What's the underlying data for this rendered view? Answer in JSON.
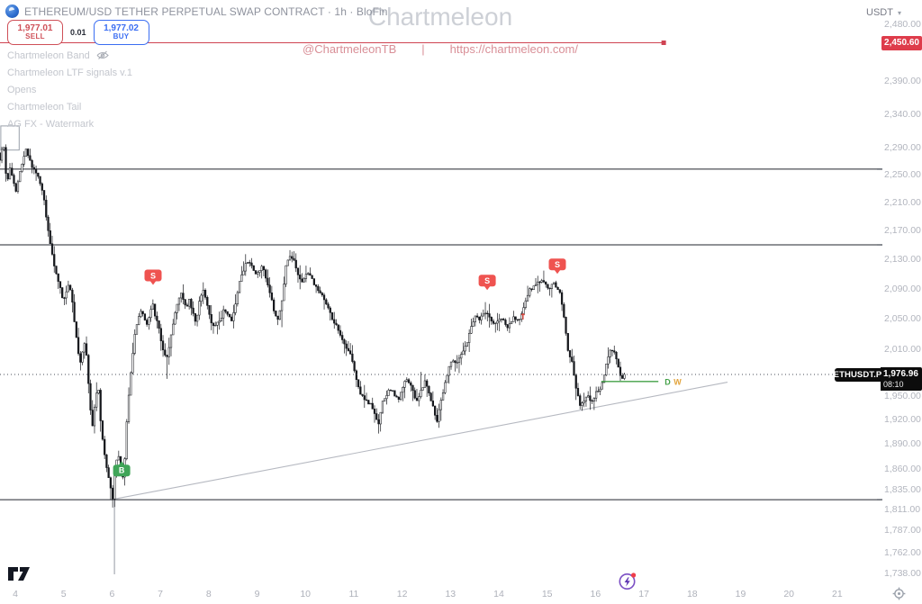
{
  "header": {
    "symbol_title": "ETHEREUM/USD TETHER PERPETUAL SWAP CONTRACT · 1h · BloFin"
  },
  "order_panel": {
    "sell_price": "1,977.01",
    "sell_label": "SELL",
    "spread": "0.01",
    "buy_price": "1,977.02",
    "buy_label": "BUY"
  },
  "indicators": [
    {
      "label": "Chartmeleon Band",
      "hidden": true
    },
    {
      "label": "Chartmeleon LTF signals v.1",
      "hidden": false
    },
    {
      "label": "Opens",
      "hidden": false
    },
    {
      "label": "Chartmeleon Tail",
      "hidden": false
    },
    {
      "label": "AG FX - Watermark",
      "hidden": false
    }
  ],
  "watermark": {
    "title": "Chartmeleon",
    "handle": "@ChartmeleonTB",
    "separator": "|",
    "url": "https://chartmeleon.com/"
  },
  "price_scale": {
    "unit": "USDT",
    "labels": [
      "2,480.00",
      "2,390.00",
      "2,340.00",
      "2,290.00",
      "2,250.00",
      "2,210.00",
      "2,170.00",
      "2,130.00",
      "2,090.00",
      "2,050.00",
      "2,010.00",
      "1,950.00",
      "1,920.00",
      "1,890.00",
      "1,860.00",
      "1,835.00",
      "1,811.00",
      "1,787.00",
      "1,762.00",
      "1,738.00"
    ],
    "alert_tag": {
      "text": "2,450.60"
    },
    "last_price_tag": {
      "symbol": "ETHUSDT.P",
      "price": "1,976.96",
      "countdown": "08:10"
    }
  },
  "time_scale": {
    "labels": [
      "4",
      "5",
      "6",
      "7",
      "8",
      "9",
      "10",
      "11",
      "12",
      "13",
      "14",
      "15",
      "16",
      "17",
      "18",
      "19",
      "20",
      "21"
    ]
  },
  "colors": {
    "sell_red": "#cf5058",
    "buy_blue": "#3b6ef2",
    "alert_red": "#cf4352",
    "tag_red": "#de3c4b",
    "tag_black": "#0c0c0c",
    "candle": "#16181d",
    "level_line": "#21252e",
    "trendline_gray": "#b6b9c1",
    "signal_red": "#ef5350",
    "signal_green": "#3fa558",
    "open_line_green": "#43a047",
    "open_w_orange": "#e2a33b",
    "watermark_pink": "#d98f97",
    "event_purple": "#7b4fc4"
  },
  "chart_data": {
    "type": "candlestick",
    "symbol": "ETHUSDT.P",
    "exchange": "BloFin",
    "timeframe": "1h",
    "title_watermark": "Chartmeleon",
    "y_axis": {
      "scale": "log",
      "min": 1738,
      "max": 2480,
      "tick_step_top": 50,
      "grid": false
    },
    "x_axis": {
      "unit": "day-of-month",
      "ticks": [
        4,
        5,
        6,
        7,
        8,
        9,
        10,
        11,
        12,
        13,
        14,
        15,
        16,
        17,
        18,
        19,
        20,
        21
      ]
    },
    "last_price": 1976.96,
    "countdown": "08:10",
    "alert_line": {
      "price": 2450.6,
      "from_day": 3.68,
      "to_day": 17.41
    },
    "horizontal_lines": [
      2258,
      2150,
      1823
    ],
    "trendline": {
      "from": [
        6.08,
        1824
      ],
      "to": [
        18.73,
        1967
      ]
    },
    "open_line": {
      "price": 1968,
      "from_day": 16.12,
      "to_day": 17.3,
      "labels": [
        {
          "text": "D",
          "color": "#43a047"
        },
        {
          "text": "W",
          "color": "#e2a33b"
        }
      ]
    },
    "signals": [
      {
        "type": "sell",
        "label": "S",
        "day": 6.85,
        "price": 2095
      },
      {
        "type": "sell",
        "label": "S",
        "day": 13.76,
        "price": 2088
      },
      {
        "type": "sell",
        "label": "S",
        "day": 15.21,
        "price": 2110
      },
      {
        "type": "buy",
        "label": "B",
        "day": 6.2,
        "price": 1869
      }
    ],
    "minor_mark": {
      "day": 14.5,
      "price": 2052
    },
    "event_line": {
      "day": 6.05,
      "from_price": 1823
    },
    "range_box": {
      "day_from": 3.7,
      "day_to": 4.08,
      "price_low": 2286,
      "price_high": 2322
    },
    "price_path": [
      [
        3.68,
        2282
      ],
      [
        3.74,
        2268
      ],
      [
        3.79,
        2310
      ],
      [
        3.83,
        2255
      ],
      [
        3.88,
        2242
      ],
      [
        3.94,
        2262
      ],
      [
        4.0,
        2240
      ],
      [
        4.06,
        2226
      ],
      [
        4.12,
        2248
      ],
      [
        4.19,
        2270
      ],
      [
        4.26,
        2288
      ],
      [
        4.32,
        2276
      ],
      [
        4.38,
        2262
      ],
      [
        4.45,
        2255
      ],
      [
        4.52,
        2248
      ],
      [
        4.58,
        2232
      ],
      [
        4.64,
        2212
      ],
      [
        4.7,
        2178
      ],
      [
        4.78,
        2145
      ],
      [
        4.85,
        2120
      ],
      [
        4.92,
        2102
      ],
      [
        4.98,
        2088
      ],
      [
        5.04,
        2072
      ],
      [
        5.1,
        2088
      ],
      [
        5.16,
        2098
      ],
      [
        5.22,
        2072
      ],
      [
        5.28,
        2038
      ],
      [
        5.34,
        2005
      ],
      [
        5.4,
        1988
      ],
      [
        5.46,
        2022
      ],
      [
        5.52,
        1998
      ],
      [
        5.58,
        1942
      ],
      [
        5.64,
        1912
      ],
      [
        5.7,
        1948
      ],
      [
        5.76,
        1958
      ],
      [
        5.82,
        1905
      ],
      [
        5.88,
        1882
      ],
      [
        5.94,
        1858
      ],
      [
        6.0,
        1840
      ],
      [
        6.05,
        1822
      ],
      [
        6.1,
        1855
      ],
      [
        6.16,
        1880
      ],
      [
        6.22,
        1858
      ],
      [
        6.28,
        1845
      ],
      [
        6.34,
        1910
      ],
      [
        6.4,
        1962
      ],
      [
        6.46,
        1998
      ],
      [
        6.52,
        2032
      ],
      [
        6.58,
        2048
      ],
      [
        6.64,
        2060
      ],
      [
        6.7,
        2052
      ],
      [
        6.76,
        2042
      ],
      [
        6.82,
        2055
      ],
      [
        6.88,
        2072
      ],
      [
        6.94,
        2050
      ],
      [
        7.0,
        2042
      ],
      [
        7.06,
        2020
      ],
      [
        7.12,
        2002
      ],
      [
        7.18,
        1998
      ],
      [
        7.24,
        2018
      ],
      [
        7.3,
        2042
      ],
      [
        7.38,
        2068
      ],
      [
        7.46,
        2085
      ],
      [
        7.52,
        2072
      ],
      [
        7.58,
        2062
      ],
      [
        7.64,
        2078
      ],
      [
        7.7,
        2058
      ],
      [
        7.78,
        2045
      ],
      [
        7.86,
        2078
      ],
      [
        7.94,
        2088
      ],
      [
        8.0,
        2072
      ],
      [
        8.06,
        2052
      ],
      [
        8.12,
        2038
      ],
      [
        8.2,
        2042
      ],
      [
        8.28,
        2048
      ],
      [
        8.36,
        2062
      ],
      [
        8.44,
        2056
      ],
      [
        8.52,
        2048
      ],
      [
        8.6,
        2072
      ],
      [
        8.68,
        2098
      ],
      [
        8.76,
        2115
      ],
      [
        8.84,
        2128
      ],
      [
        8.92,
        2124
      ],
      [
        9.0,
        2108
      ],
      [
        9.08,
        2115
      ],
      [
        9.16,
        2120
      ],
      [
        9.24,
        2098
      ],
      [
        9.32,
        2082
      ],
      [
        9.4,
        2055
      ],
      [
        9.48,
        2048
      ],
      [
        9.56,
        2075
      ],
      [
        9.64,
        2122
      ],
      [
        9.72,
        2135
      ],
      [
        9.8,
        2128
      ],
      [
        9.88,
        2108
      ],
      [
        9.96,
        2098
      ],
      [
        10.04,
        2108
      ],
      [
        10.12,
        2112
      ],
      [
        10.2,
        2098
      ],
      [
        10.28,
        2092
      ],
      [
        10.36,
        2082
      ],
      [
        10.44,
        2075
      ],
      [
        10.52,
        2062
      ],
      [
        10.6,
        2048
      ],
      [
        10.68,
        2040
      ],
      [
        10.76,
        2028
      ],
      [
        10.84,
        2018
      ],
      [
        10.92,
        2008
      ],
      [
        11.0,
        1998
      ],
      [
        11.08,
        1972
      ],
      [
        11.16,
        1955
      ],
      [
        11.24,
        1948
      ],
      [
        11.32,
        1942
      ],
      [
        11.4,
        1938
      ],
      [
        11.48,
        1925
      ],
      [
        11.56,
        1915
      ],
      [
        11.64,
        1942
      ],
      [
        11.72,
        1952
      ],
      [
        11.8,
        1958
      ],
      [
        11.88,
        1952
      ],
      [
        11.96,
        1945
      ],
      [
        12.04,
        1958
      ],
      [
        12.12,
        1972
      ],
      [
        12.2,
        1965
      ],
      [
        12.28,
        1952
      ],
      [
        12.36,
        1942
      ],
      [
        12.44,
        1958
      ],
      [
        12.52,
        1968
      ],
      [
        12.6,
        1952
      ],
      [
        12.68,
        1935
      ],
      [
        12.76,
        1918
      ],
      [
        12.84,
        1942
      ],
      [
        12.92,
        1962
      ],
      [
        13.0,
        1985
      ],
      [
        13.08,
        1996
      ],
      [
        13.16,
        1990
      ],
      [
        13.24,
        1998
      ],
      [
        13.32,
        2008
      ],
      [
        13.4,
        2022
      ],
      [
        13.48,
        2042
      ],
      [
        13.56,
        2052
      ],
      [
        13.64,
        2048
      ],
      [
        13.72,
        2055
      ],
      [
        13.8,
        2058
      ],
      [
        13.88,
        2048
      ],
      [
        13.96,
        2042
      ],
      [
        14.04,
        2048
      ],
      [
        14.12,
        2052
      ],
      [
        14.2,
        2038
      ],
      [
        14.28,
        2042
      ],
      [
        14.36,
        2052
      ],
      [
        14.44,
        2048
      ],
      [
        14.52,
        2055
      ],
      [
        14.6,
        2075
      ],
      [
        14.68,
        2088
      ],
      [
        14.76,
        2092
      ],
      [
        14.84,
        2098
      ],
      [
        14.92,
        2102
      ],
      [
        15.0,
        2098
      ],
      [
        15.08,
        2088
      ],
      [
        15.16,
        2098
      ],
      [
        15.24,
        2092
      ],
      [
        15.32,
        2082
      ],
      [
        15.4,
        2045
      ],
      [
        15.48,
        2005
      ],
      [
        15.56,
        1992
      ],
      [
        15.64,
        1958
      ],
      [
        15.72,
        1938
      ],
      [
        15.8,
        1945
      ],
      [
        15.88,
        1952
      ],
      [
        15.96,
        1942
      ],
      [
        16.04,
        1952
      ],
      [
        16.12,
        1958
      ],
      [
        16.2,
        1968
      ],
      [
        16.28,
        1998
      ],
      [
        16.36,
        2008
      ],
      [
        16.44,
        2005
      ],
      [
        16.52,
        1985
      ],
      [
        16.58,
        1968
      ],
      [
        16.63,
        1976.96
      ]
    ]
  }
}
